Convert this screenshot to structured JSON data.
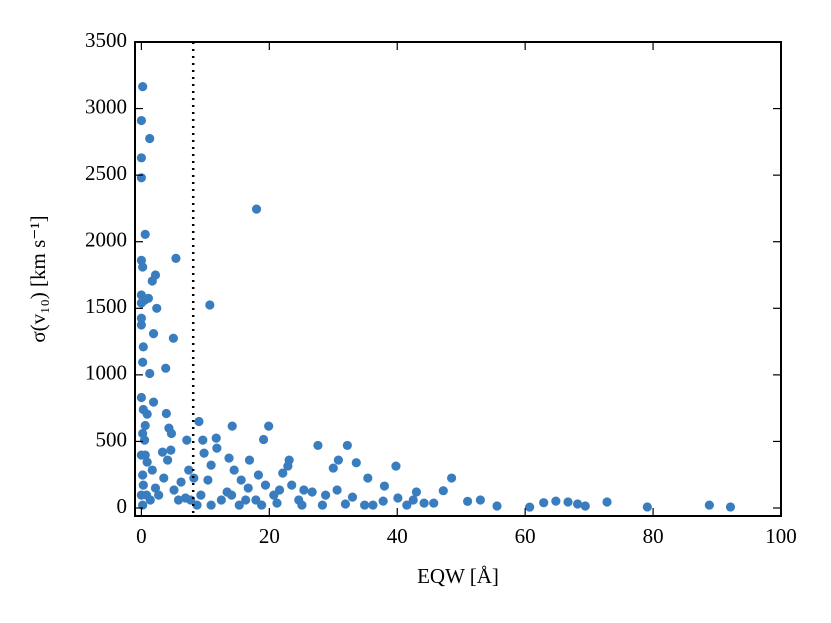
{
  "chart_data": {
    "type": "scatter",
    "xlabel": "EQW [Å]",
    "ylabel": "σ(v₁₀) [km s⁻¹]",
    "xlim": [
      -1,
      100
    ],
    "ylim": [
      -60,
      3500
    ],
    "xticks": [
      0,
      20,
      40,
      60,
      80,
      100
    ],
    "yticks": [
      0,
      500,
      1000,
      1500,
      2000,
      2500,
      3000,
      3500
    ],
    "vline": 8.1,
    "grid": false,
    "series": [
      {
        "color": "#3a7dbf",
        "x": [
          0.2,
          0,
          1.3,
          0,
          0,
          0.6,
          18,
          5.4,
          0,
          0.2,
          2.2,
          1.7,
          0,
          1.1,
          0.5,
          0,
          2.4,
          10.7,
          0,
          0,
          1.9,
          5,
          0.3,
          0.2,
          3.8,
          1.3,
          0,
          1.9,
          0.3,
          3.9,
          0.9,
          9,
          0.6,
          14.2,
          19.9,
          4.3,
          0.2,
          4.7,
          19.1,
          27.6,
          32.2,
          51,
          53,
          55.6,
          60.7,
          62.9,
          64.8,
          66.7,
          68.2,
          69.4,
          72.8,
          79.1,
          88.8,
          92.1,
          48.5,
          47.2,
          39.8,
          38,
          35.4,
          33.6,
          30.8,
          30,
          43,
          42.5,
          44.2,
          45.7,
          41.5,
          40.1,
          37.8,
          36.2,
          34.9,
          33,
          31.9,
          30.6,
          28.8,
          26.7,
          25.4,
          24.6,
          23.5,
          23.1,
          22.9,
          22.1,
          21.6,
          20.7,
          19.4,
          18.3,
          17.9,
          16.9,
          16.7,
          15.6,
          14.5,
          13.7,
          13.4,
          12.5,
          11.8,
          11.7,
          10.9,
          10.4,
          9.8,
          9.6,
          9.3,
          8.7,
          8.2,
          7.4,
          7.1,
          6.9,
          6.2,
          5.8,
          5.1,
          4.6,
          4.1,
          3.5,
          3.3,
          2.7,
          2.2,
          1.7,
          1.4,
          0.9,
          0.8,
          0.5,
          0.3,
          0.2,
          0.6,
          0,
          0,
          0.2,
          10.9,
          15.3,
          18.8,
          25.1,
          28.3,
          7.7,
          14.1,
          21.2,
          16.3
        ],
        "values": [
          3165,
          2910,
          2775,
          2630,
          2480,
          2055,
          2245,
          1875,
          1860,
          1810,
          1750,
          1705,
          1600,
          1575,
          1560,
          1540,
          1500,
          1525,
          1425,
          1375,
          1310,
          1275,
          1210,
          1095,
          1050,
          1010,
          830,
          795,
          740,
          710,
          705,
          650,
          620,
          615,
          615,
          600,
          560,
          560,
          515,
          470,
          470,
          50,
          60,
          15,
          7,
          40,
          52,
          45,
          30,
          15,
          45,
          8,
          22,
          8,
          225,
          130,
          315,
          165,
          225,
          340,
          360,
          300,
          120,
          60,
          37,
          37,
          22,
          75,
          52,
          22,
          22,
          82,
          30,
          135,
          97,
          120,
          135,
          60,
          172,
          360,
          315,
          262,
          135,
          97,
          172,
          248,
          60,
          360,
          150,
          210,
          285,
          375,
          120,
          60,
          450,
          525,
          322,
          210,
          412,
          510,
          97,
          22,
          225,
          285,
          510,
          75,
          195,
          60,
          135,
          435,
          360,
          225,
          420,
          97,
          150,
          285,
          60,
          345,
          97,
          510,
          172,
          22,
          397,
          97,
          397,
          248,
          22,
          22,
          22,
          22,
          22,
          60,
          97,
          37,
          60
        ]
      }
    ]
  }
}
